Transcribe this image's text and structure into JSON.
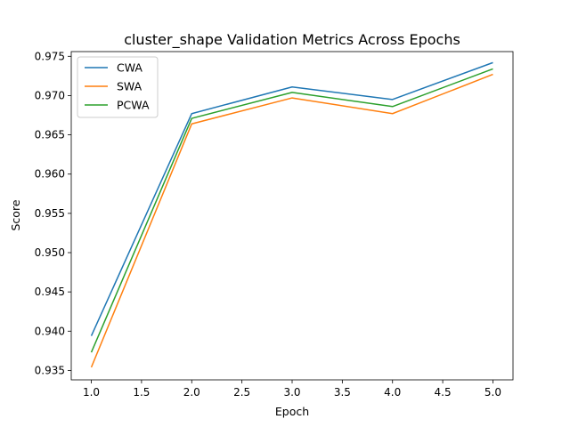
{
  "chart_data": {
    "type": "line",
    "title": "cluster_shape Validation Metrics Across Epochs",
    "xlabel": "Epoch",
    "ylabel": "Score",
    "x": [
      1,
      2,
      3,
      4,
      5
    ],
    "xlim": [
      0.8,
      5.2
    ],
    "ylim": [
      0.9338,
      0.9756
    ],
    "xticks": [
      1.0,
      1.5,
      2.0,
      2.5,
      3.0,
      3.5,
      4.0,
      4.5,
      5.0
    ],
    "xtick_labels": [
      "1.0",
      "1.5",
      "2.0",
      "2.5",
      "3.0",
      "3.5",
      "4.0",
      "4.5",
      "5.0"
    ],
    "yticks": [
      0.935,
      0.94,
      0.945,
      0.95,
      0.955,
      0.96,
      0.965,
      0.97,
      0.975
    ],
    "ytick_labels": [
      "0.935",
      "0.940",
      "0.945",
      "0.950",
      "0.955",
      "0.960",
      "0.965",
      "0.970",
      "0.975"
    ],
    "grid": false,
    "legend_position": "top-left",
    "series": [
      {
        "name": "CWA",
        "color": "#1f77b4",
        "values": [
          0.9394,
          0.9677,
          0.9711,
          0.9695,
          0.9742
        ]
      },
      {
        "name": "SWA",
        "color": "#ff7f0e",
        "values": [
          0.9354,
          0.9664,
          0.9697,
          0.9677,
          0.9727
        ]
      },
      {
        "name": "PCWA",
        "color": "#2ca02c",
        "values": [
          0.9373,
          0.9671,
          0.9704,
          0.9686,
          0.9734
        ]
      }
    ]
  }
}
